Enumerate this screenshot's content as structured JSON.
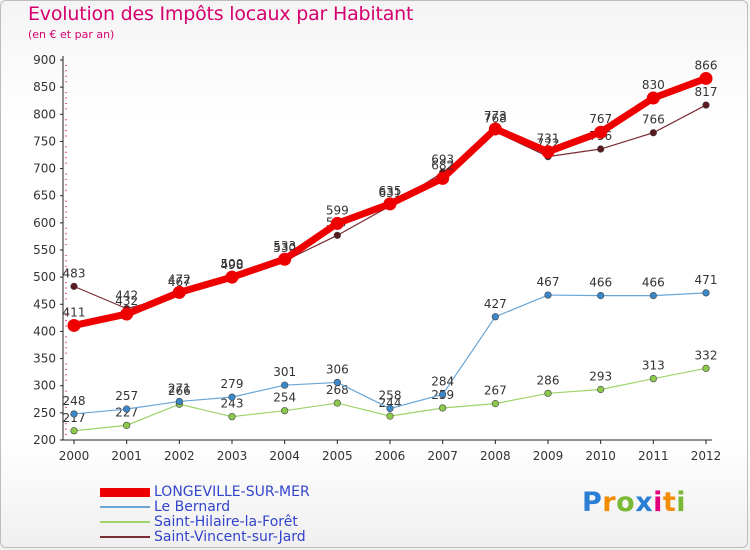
{
  "header": {
    "title": "Evolution des Impôts locaux par Habitant",
    "subtitle": "(en € et par an)"
  },
  "logo": {
    "letters": [
      "P",
      "r",
      "o",
      "x",
      "i",
      "t",
      "i"
    ],
    "colors": [
      "#2a7fd4",
      "#f28c00",
      "#79b935",
      "#2a7fd4",
      "#e0007a",
      "#f28c00",
      "#79b935"
    ]
  },
  "chart_data": {
    "type": "line",
    "title": "Evolution des Impôts locaux par Habitant",
    "subtitle": "(en € et par an)",
    "xlabel": "",
    "ylabel": "",
    "x": [
      "2000",
      "2001",
      "2002",
      "2003",
      "2004",
      "2005",
      "2006",
      "2007",
      "2008",
      "2009",
      "2010",
      "2011",
      "2012"
    ],
    "ylim": [
      200,
      900
    ],
    "yticks": [
      200,
      250,
      300,
      350,
      400,
      450,
      500,
      550,
      600,
      650,
      700,
      750,
      800,
      850,
      900
    ],
    "grid": false,
    "legend_position": "bottom-left",
    "series": [
      {
        "name": "Saint-Hilaire-la-Forêt",
        "color": "#9ed46a",
        "marker": "#8cc84b",
        "width": 1.2,
        "values": [
          217,
          227,
          266,
          243,
          254,
          268,
          244,
          259,
          267,
          286,
          293,
          313,
          332
        ]
      },
      {
        "name": "Le Bernard",
        "color": "#6aa6d6",
        "marker": "#3b87c8",
        "width": 1.2,
        "values": [
          248,
          257,
          271,
          279,
          301,
          306,
          258,
          284,
          427,
          467,
          466,
          466,
          471
        ]
      },
      {
        "name": "Saint-Vincent-sur-Jard",
        "color": "#7a2c33",
        "marker": "#5a1a20",
        "width": 1.2,
        "values": [
          483,
          442,
          467,
          498,
          530,
          577,
          631,
          693,
          768,
          722,
          736,
          766,
          817
        ]
      },
      {
        "name": "LONGEVILLE-SUR-MER",
        "color": "#ee0000",
        "marker": "#ee0000",
        "width": 7,
        "values": [
          411,
          432,
          472,
          500,
          533,
          599,
          635,
          682,
          773,
          731,
          767,
          830,
          866
        ]
      }
    ],
    "legend_order": [
      "LONGEVILLE-SUR-MER",
      "Le Bernard",
      "Saint-Hilaire-la-Forêt",
      "Saint-Vincent-sur-Jard"
    ]
  }
}
